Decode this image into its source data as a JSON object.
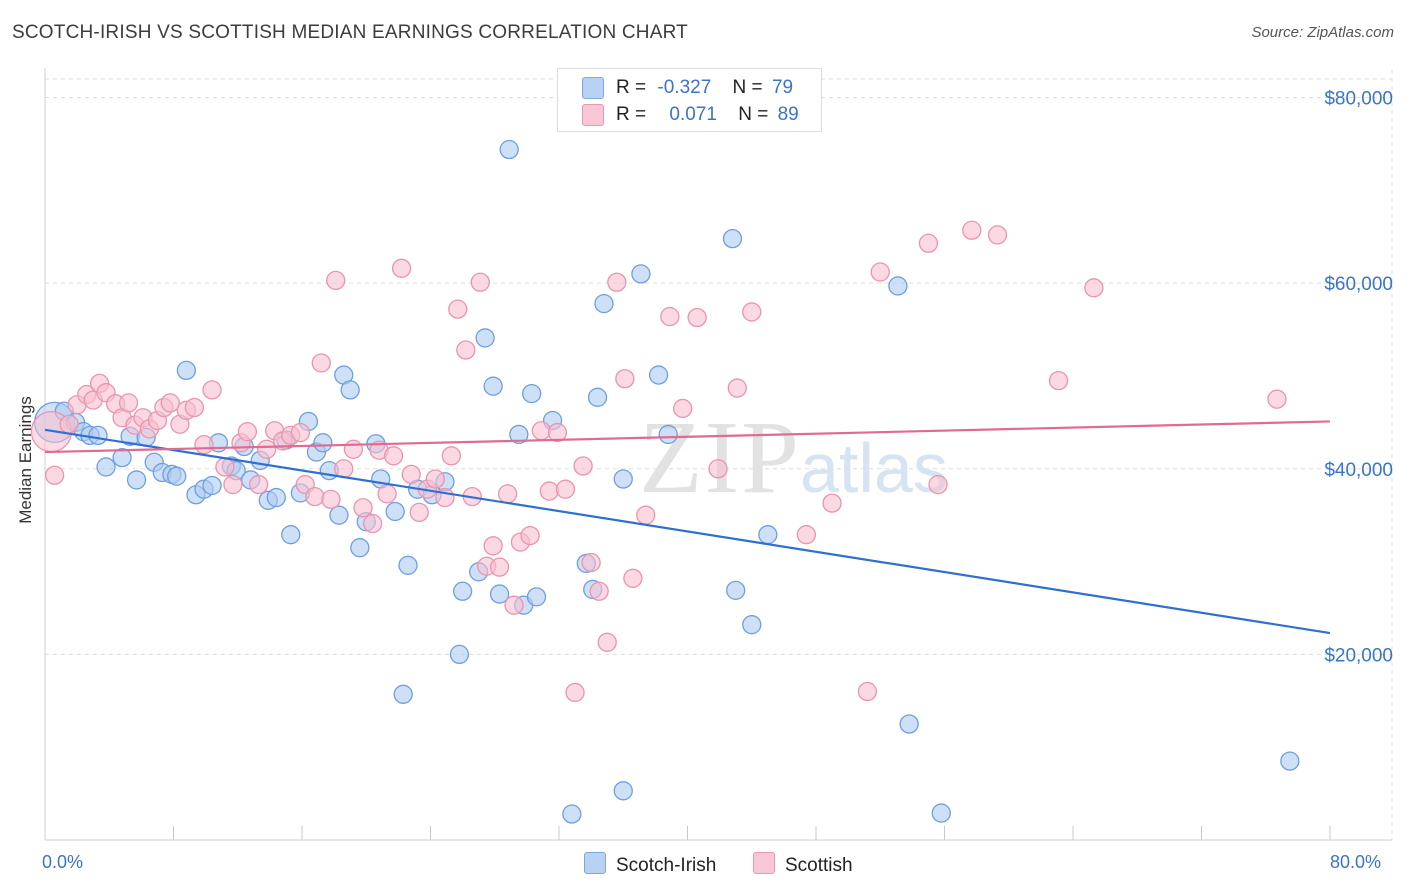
{
  "title": "SCOTCH-IRISH VS SCOTTISH MEDIAN EARNINGS CORRELATION CHART",
  "source": "Source: ZipAtlas.com",
  "watermark": "ZIPatlas",
  "legend": {
    "rows": [
      {
        "r_label": "R =",
        "r_value": "-0.327",
        "n_label": "N =",
        "n_value": "79"
      },
      {
        "r_label": "R =",
        "r_value": "0.071",
        "n_label": "N =",
        "n_value": "89"
      }
    ]
  },
  "bottom_legend": [
    "Scotch-Irish",
    "Scottish"
  ],
  "colors": {
    "scotch_irish_fill": "#aecbf0",
    "scotch_irish_stroke": "#6f9ee0",
    "scotch_irish_line": "#2f6fd0",
    "scottish_fill": "#f7bfd0",
    "scottish_stroke": "#ec93ae",
    "scottish_line": "#e06a92",
    "axis_label": "#3a74c8",
    "grid": "#dddddd"
  },
  "chart_data": {
    "type": "scatter",
    "ylabel": "Median Earnings",
    "xlim": [
      0,
      80
    ],
    "ylim": [
      0,
      82000
    ],
    "x_tick_labels": [
      "0.0%",
      "80.0%"
    ],
    "y_ticks": [
      {
        "value": 20000,
        "label": "$20,000"
      },
      {
        "value": 40000,
        "label": "$40,000"
      },
      {
        "value": 60000,
        "label": "$60,000"
      },
      {
        "value": 80000,
        "label": "$80,000"
      }
    ],
    "grid": true,
    "series": [
      {
        "name": "Scotch-Irish",
        "trend": {
          "x": [
            0,
            80
          ],
          "y": [
            44200,
            22300
          ]
        },
        "points": [
          {
            "x": 0.6,
            "y": 45000,
            "big": true
          },
          {
            "x": 1.2,
            "y": 46200
          },
          {
            "x": 1.9,
            "y": 45000
          },
          {
            "x": 2.4,
            "y": 44000
          },
          {
            "x": 2.8,
            "y": 43600
          },
          {
            "x": 3.3,
            "y": 43600
          },
          {
            "x": 3.8,
            "y": 40200
          },
          {
            "x": 4.8,
            "y": 41200
          },
          {
            "x": 5.3,
            "y": 43500
          },
          {
            "x": 5.7,
            "y": 38800
          },
          {
            "x": 6.3,
            "y": 43400
          },
          {
            "x": 6.8,
            "y": 40700
          },
          {
            "x": 7.3,
            "y": 39600
          },
          {
            "x": 7.9,
            "y": 39400
          },
          {
            "x": 8.2,
            "y": 39200
          },
          {
            "x": 8.8,
            "y": 50600
          },
          {
            "x": 9.4,
            "y": 37200
          },
          {
            "x": 9.9,
            "y": 37800
          },
          {
            "x": 10.4,
            "y": 38200
          },
          {
            "x": 10.8,
            "y": 42800
          },
          {
            "x": 11.6,
            "y": 40300
          },
          {
            "x": 11.9,
            "y": 39800
          },
          {
            "x": 12.4,
            "y": 42400
          },
          {
            "x": 12.8,
            "y": 38800
          },
          {
            "x": 13.4,
            "y": 40900
          },
          {
            "x": 13.9,
            "y": 36600
          },
          {
            "x": 14.4,
            "y": 36900
          },
          {
            "x": 15.0,
            "y": 43100
          },
          {
            "x": 15.3,
            "y": 32900
          },
          {
            "x": 15.9,
            "y": 37400
          },
          {
            "x": 16.4,
            "y": 45100
          },
          {
            "x": 16.9,
            "y": 41800
          },
          {
            "x": 17.3,
            "y": 42800
          },
          {
            "x": 17.7,
            "y": 39800
          },
          {
            "x": 18.3,
            "y": 35000
          },
          {
            "x": 18.6,
            "y": 50100
          },
          {
            "x": 19.0,
            "y": 48500
          },
          {
            "x": 19.6,
            "y": 31500
          },
          {
            "x": 20.0,
            "y": 34300
          },
          {
            "x": 20.6,
            "y": 42700
          },
          {
            "x": 20.9,
            "y": 38900
          },
          {
            "x": 21.8,
            "y": 35400
          },
          {
            "x": 22.6,
            "y": 29600
          },
          {
            "x": 22.3,
            "y": 15700
          },
          {
            "x": 23.2,
            "y": 37800
          },
          {
            "x": 24.1,
            "y": 37200
          },
          {
            "x": 24.9,
            "y": 38600
          },
          {
            "x": 25.8,
            "y": 20000
          },
          {
            "x": 26.0,
            "y": 26800
          },
          {
            "x": 27.0,
            "y": 28900
          },
          {
            "x": 27.4,
            "y": 54100
          },
          {
            "x": 27.9,
            "y": 48900
          },
          {
            "x": 28.3,
            "y": 26500
          },
          {
            "x": 28.9,
            "y": 74400
          },
          {
            "x": 29.5,
            "y": 43700
          },
          {
            "x": 29.8,
            "y": 25300
          },
          {
            "x": 30.3,
            "y": 48100
          },
          {
            "x": 30.6,
            "y": 26200
          },
          {
            "x": 31.6,
            "y": 45200
          },
          {
            "x": 32.8,
            "y": 2800
          },
          {
            "x": 33.7,
            "y": 29800
          },
          {
            "x": 34.1,
            "y": 27000
          },
          {
            "x": 34.4,
            "y": 47700
          },
          {
            "x": 34.8,
            "y": 57800
          },
          {
            "x": 36.0,
            "y": 38900
          },
          {
            "x": 36.0,
            "y": 5300
          },
          {
            "x": 37.1,
            "y": 61000
          },
          {
            "x": 38.2,
            "y": 50100
          },
          {
            "x": 38.8,
            "y": 43700
          },
          {
            "x": 42.8,
            "y": 64800
          },
          {
            "x": 43.0,
            "y": 26900
          },
          {
            "x": 44.0,
            "y": 23200
          },
          {
            "x": 45.0,
            "y": 32900
          },
          {
            "x": 53.1,
            "y": 59700
          },
          {
            "x": 53.8,
            "y": 12500
          },
          {
            "x": 54.0,
            "y": 60000,
            "hidden": true
          },
          {
            "x": 55.8,
            "y": 2900
          },
          {
            "x": 77.5,
            "y": 8500
          },
          {
            "x": 0.3,
            "y": 44000,
            "hidden": true
          }
        ]
      },
      {
        "name": "Scottish",
        "trend": {
          "x": [
            0,
            80
          ],
          "y": [
            41800,
            45100
          ]
        },
        "points": [
          {
            "x": 0.4,
            "y": 44000,
            "big": true
          },
          {
            "x": 0.6,
            "y": 39300
          },
          {
            "x": 1.5,
            "y": 44800
          },
          {
            "x": 2.0,
            "y": 46900
          },
          {
            "x": 2.6,
            "y": 48000
          },
          {
            "x": 3.0,
            "y": 47400
          },
          {
            "x": 3.4,
            "y": 49200
          },
          {
            "x": 3.8,
            "y": 48200
          },
          {
            "x": 4.4,
            "y": 47000
          },
          {
            "x": 4.8,
            "y": 45500
          },
          {
            "x": 5.2,
            "y": 47100
          },
          {
            "x": 5.6,
            "y": 44700
          },
          {
            "x": 6.1,
            "y": 45500
          },
          {
            "x": 6.5,
            "y": 44300
          },
          {
            "x": 7.0,
            "y": 45200
          },
          {
            "x": 7.4,
            "y": 46600
          },
          {
            "x": 7.8,
            "y": 47100
          },
          {
            "x": 8.4,
            "y": 44800
          },
          {
            "x": 8.8,
            "y": 46300
          },
          {
            "x": 9.3,
            "y": 46600
          },
          {
            "x": 9.9,
            "y": 42600
          },
          {
            "x": 10.4,
            "y": 48500
          },
          {
            "x": 11.2,
            "y": 40200
          },
          {
            "x": 11.7,
            "y": 38300
          },
          {
            "x": 12.2,
            "y": 42800
          },
          {
            "x": 12.6,
            "y": 44000
          },
          {
            "x": 13.3,
            "y": 38300
          },
          {
            "x": 13.8,
            "y": 42100
          },
          {
            "x": 14.3,
            "y": 44100
          },
          {
            "x": 14.8,
            "y": 43000
          },
          {
            "x": 15.3,
            "y": 43600
          },
          {
            "x": 15.9,
            "y": 43900
          },
          {
            "x": 16.2,
            "y": 38300
          },
          {
            "x": 16.8,
            "y": 37000
          },
          {
            "x": 17.2,
            "y": 51400
          },
          {
            "x": 17.8,
            "y": 36700
          },
          {
            "x": 18.1,
            "y": 60300
          },
          {
            "x": 18.6,
            "y": 40000
          },
          {
            "x": 19.2,
            "y": 42100
          },
          {
            "x": 19.8,
            "y": 35800
          },
          {
            "x": 20.4,
            "y": 34100
          },
          {
            "x": 20.8,
            "y": 42000
          },
          {
            "x": 21.3,
            "y": 37300
          },
          {
            "x": 21.7,
            "y": 41400
          },
          {
            "x": 22.2,
            "y": 61600
          },
          {
            "x": 22.8,
            "y": 39400
          },
          {
            "x": 23.3,
            "y": 35300
          },
          {
            "x": 23.8,
            "y": 37800
          },
          {
            "x": 24.3,
            "y": 38900
          },
          {
            "x": 24.9,
            "y": 36900
          },
          {
            "x": 25.3,
            "y": 41400
          },
          {
            "x": 25.7,
            "y": 57200
          },
          {
            "x": 26.2,
            "y": 52800
          },
          {
            "x": 26.6,
            "y": 37000
          },
          {
            "x": 27.1,
            "y": 60100
          },
          {
            "x": 27.5,
            "y": 29500
          },
          {
            "x": 27.9,
            "y": 31700
          },
          {
            "x": 28.3,
            "y": 29400
          },
          {
            "x": 28.8,
            "y": 37300
          },
          {
            "x": 29.2,
            "y": 25300
          },
          {
            "x": 29.6,
            "y": 32100
          },
          {
            "x": 30.2,
            "y": 32800
          },
          {
            "x": 30.9,
            "y": 44100
          },
          {
            "x": 31.4,
            "y": 37600
          },
          {
            "x": 31.9,
            "y": 43900
          },
          {
            "x": 32.4,
            "y": 37800
          },
          {
            "x": 33.0,
            "y": 15900
          },
          {
            "x": 33.5,
            "y": 40300
          },
          {
            "x": 34.0,
            "y": 29900
          },
          {
            "x": 34.5,
            "y": 26800
          },
          {
            "x": 35.0,
            "y": 21300
          },
          {
            "x": 35.6,
            "y": 60100
          },
          {
            "x": 36.1,
            "y": 49700
          },
          {
            "x": 36.6,
            "y": 28200
          },
          {
            "x": 37.4,
            "y": 35000
          },
          {
            "x": 38.9,
            "y": 56400
          },
          {
            "x": 39.7,
            "y": 46500
          },
          {
            "x": 40.6,
            "y": 56300
          },
          {
            "x": 41.9,
            "y": 40000
          },
          {
            "x": 43.1,
            "y": 48700
          },
          {
            "x": 44.0,
            "y": 56900
          },
          {
            "x": 47.4,
            "y": 32900
          },
          {
            "x": 49.0,
            "y": 36300
          },
          {
            "x": 51.2,
            "y": 16000
          },
          {
            "x": 52.0,
            "y": 61200
          },
          {
            "x": 55.0,
            "y": 64300
          },
          {
            "x": 55.6,
            "y": 38300
          },
          {
            "x": 57.7,
            "y": 65700
          },
          {
            "x": 59.3,
            "y": 65200
          },
          {
            "x": 63.1,
            "y": 49500
          },
          {
            "x": 65.3,
            "y": 59500
          },
          {
            "x": 76.7,
            "y": 47500
          },
          {
            "x": 1.0,
            "y": 47200,
            "hidden": true
          },
          {
            "x": 2.0,
            "y": 44000,
            "hidden": true
          }
        ]
      }
    ]
  }
}
